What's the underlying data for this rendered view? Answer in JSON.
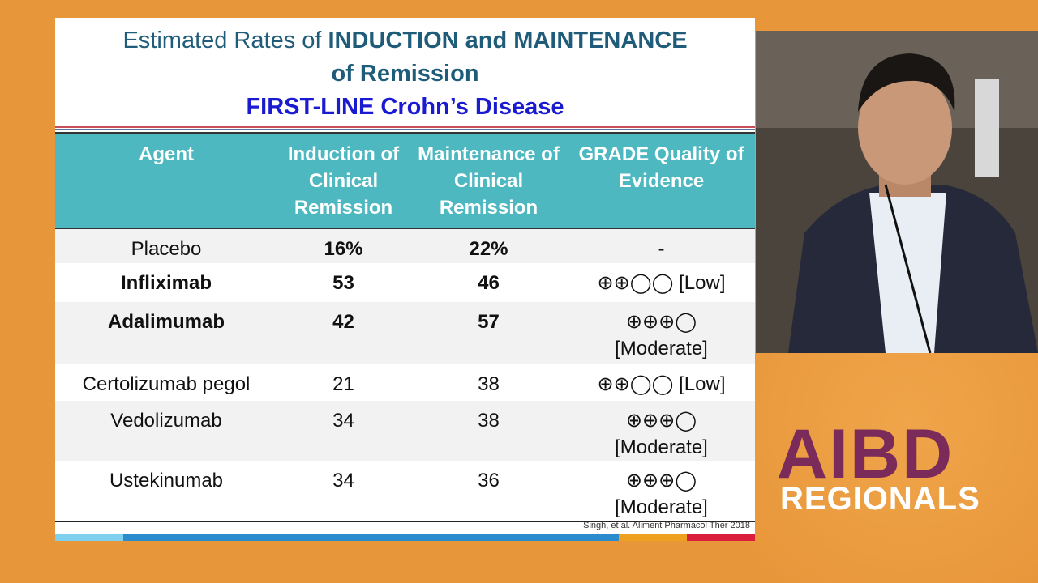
{
  "slide": {
    "title": {
      "line1_normal": "Estimated Rates of",
      "line1_bold": "INDUCTION and MAINTENANCE",
      "line2": "of Remission",
      "line3": "FIRST-LINE Crohn’s Disease"
    },
    "table": {
      "header": [
        "Agent",
        "Induction of Clinical Remission",
        "Maintenance of Clinical Remission",
        "GRADE Quality of Evidence"
      ],
      "rows": [
        {
          "agent": "Placebo",
          "induction": "16%",
          "maintenance": "22%",
          "quality": [
            "-"
          ]
        },
        {
          "agent": "Infliximab",
          "induction": "53",
          "maintenance": "46",
          "quality": [
            "⊕⊕◯◯ [Low]"
          ]
        },
        {
          "agent": "Adalimumab",
          "induction": "42",
          "maintenance": "57",
          "quality": [
            "⊕⊕⊕◯",
            "[Moderate]"
          ]
        },
        {
          "agent": "Certolizumab pegol",
          "induction": "21",
          "maintenance": "38",
          "quality": [
            "⊕⊕◯◯ [Low]"
          ]
        },
        {
          "agent": "Vedolizumab",
          "induction": "34",
          "maintenance": "38",
          "quality": [
            "⊕⊕⊕◯",
            "[Moderate]"
          ]
        },
        {
          "agent": "Ustekinumab",
          "induction": "34",
          "maintenance": "36",
          "quality": [
            "⊕⊕⊕◯",
            "[Moderate]"
          ]
        }
      ]
    },
    "citation": "Singh, et al. Aliment Pharmacol Ther 2018"
  },
  "logo": {
    "line1": "AIBD",
    "line2": "REGIONALS"
  }
}
